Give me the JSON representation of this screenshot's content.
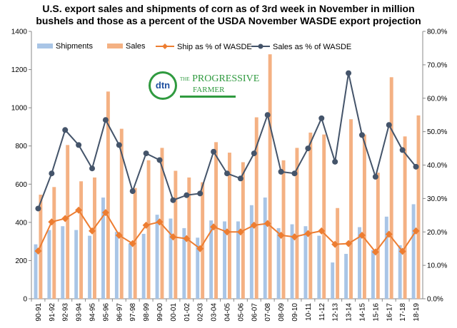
{
  "chart_data": {
    "type": "bar",
    "title_line1": "U.S. export sales and shipments of corn as of 3rd week in November in million",
    "title_line2": "bushels and those as a percent of the USDA November WASDE export projection",
    "categories": [
      "90-91",
      "91-92",
      "92-93",
      "93-94",
      "94-95",
      "95-96",
      "96-97",
      "97-98",
      "98-99",
      "99-00",
      "00-01",
      "01-02",
      "02-03",
      "03-04",
      "04-05",
      "05-06",
      "06-07",
      "07-08",
      "08-09",
      "09-10",
      "10-11",
      "11-12",
      "12-13",
      "13-14",
      "14-15",
      "15-16",
      "16-17",
      "17-18",
      "18-19"
    ],
    "left_axis": {
      "ylim": [
        0,
        1400
      ],
      "ticks": [
        "0",
        "200",
        "400",
        "600",
        "800",
        "1000",
        "1200",
        "1400"
      ]
    },
    "right_axis": {
      "ylim": [
        0,
        80
      ],
      "ticks": [
        "0.0%",
        "10.0%",
        "20.0%",
        "30.0%",
        "40.0%",
        "50.0%",
        "60.0%",
        "70.0%",
        "80.0%"
      ]
    },
    "grid": false,
    "legend_position": "top",
    "series": [
      {
        "name": "Shipments",
        "type": "bar",
        "axis": "left",
        "color": "#a9c5e6",
        "values": [
          285,
          360,
          380,
          360,
          330,
          530,
          350,
          290,
          340,
          440,
          420,
          370,
          320,
          410,
          405,
          405,
          490,
          530,
          370,
          390,
          380,
          330,
          190,
          235,
          375,
          255,
          430,
          280,
          495
        ]
      },
      {
        "name": "Sales",
        "type": "bar",
        "axis": "left",
        "color": "#f4b183",
        "values": [
          545,
          585,
          805,
          615,
          635,
          1085,
          890,
          580,
          725,
          790,
          670,
          635,
          610,
          820,
          765,
          715,
          950,
          1280,
          725,
          790,
          870,
          860,
          475,
          940,
          860,
          660,
          1160,
          850,
          960
        ]
      },
      {
        "name": "Ship as % of WASDE",
        "type": "line",
        "axis": "right",
        "color": "#ed7d31",
        "marker": "diamond",
        "values": [
          14.3,
          23.0,
          24.0,
          26.5,
          20.3,
          25.8,
          19.0,
          16.5,
          22.0,
          23.0,
          18.5,
          18.0,
          15.0,
          21.5,
          20.0,
          20.0,
          22.0,
          22.5,
          19.0,
          18.5,
          19.5,
          20.3,
          16.3,
          16.5,
          19.0,
          14.0,
          19.3,
          14.2,
          20.3
        ]
      },
      {
        "name": "Sales as % of WASDE",
        "type": "line",
        "axis": "right",
        "color": "#44546a",
        "marker": "circle",
        "values": [
          27.0,
          37.5,
          50.5,
          46.0,
          39.0,
          53.5,
          46.0,
          32.2,
          43.5,
          41.5,
          29.5,
          31.0,
          31.5,
          44.0,
          37.5,
          36.0,
          43.5,
          55.0,
          38.0,
          37.5,
          45.0,
          54.0,
          41.0,
          67.5,
          49.0,
          36.5,
          52.0,
          44.5,
          39.5
        ]
      }
    ]
  },
  "logo": {
    "mark": "dtn",
    "line1": "PROGRESSIVE",
    "line2": "FARMER",
    "the": "THE"
  }
}
